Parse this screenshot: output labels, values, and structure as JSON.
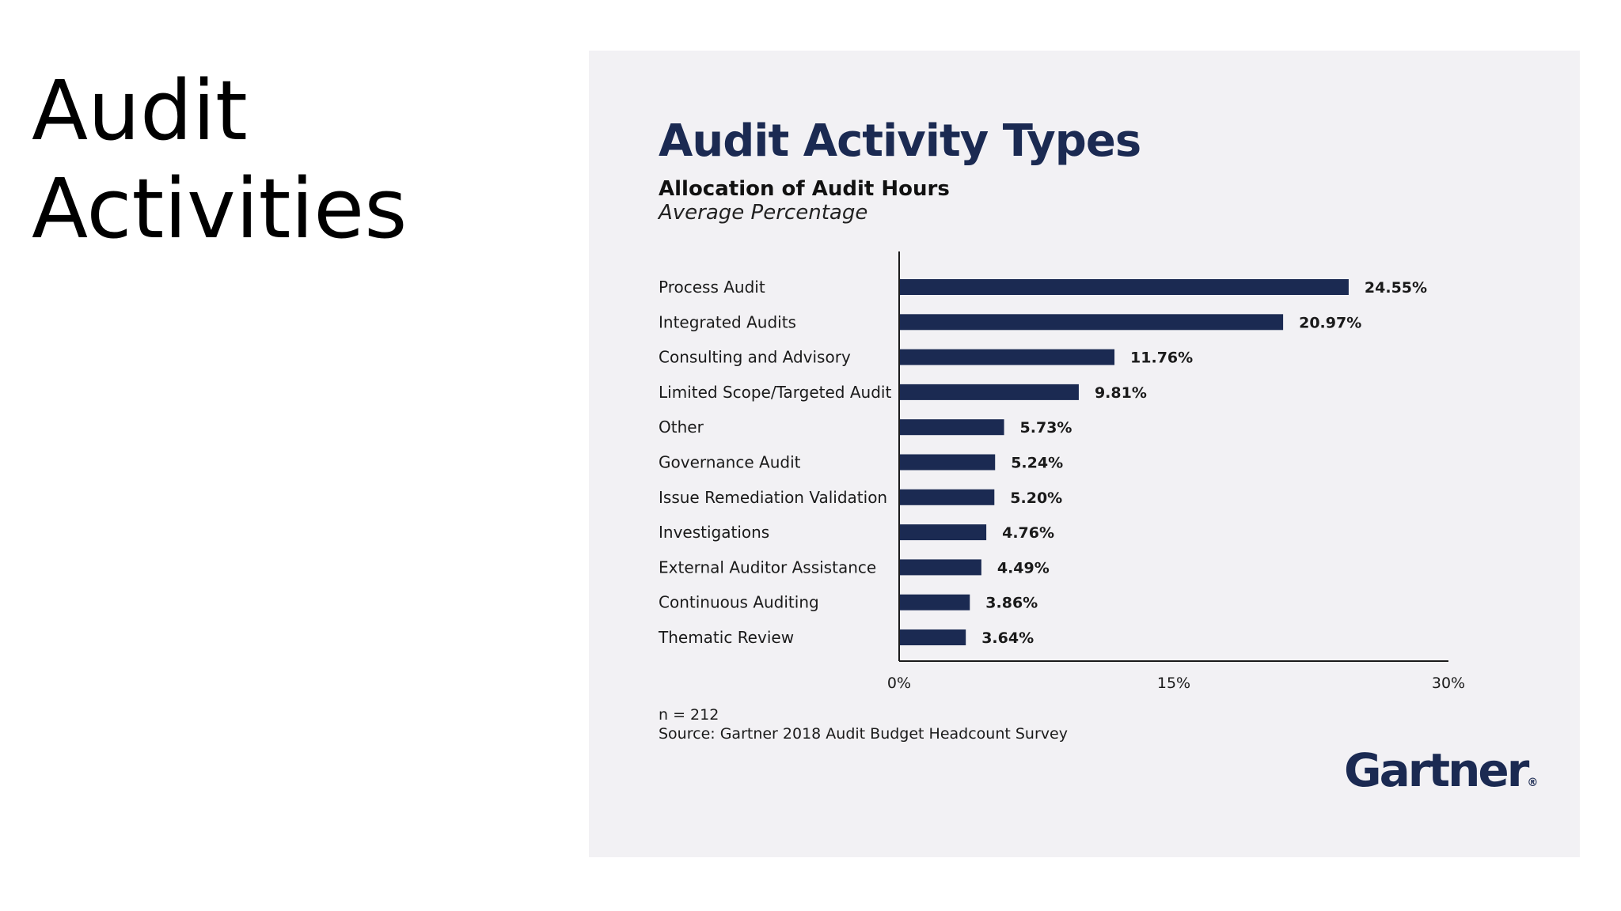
{
  "slide": {
    "title_line1": "Audit",
    "title_line2": "Activities"
  },
  "colors": {
    "bar": "#1b2a52",
    "panel_bg": "#f2f1f4",
    "axis": "#1a1a1a"
  },
  "chart_data": {
    "type": "bar",
    "orientation": "horizontal",
    "title": "Audit Activity Types",
    "subtitle": "Allocation of Audit Hours",
    "subtitle2": "Average Percentage",
    "categories": [
      "Process Audit",
      "Integrated Audits",
      "Consulting and Advisory",
      "Limited Scope/Targeted Audit",
      "Other",
      "Governance Audit",
      "Issue Remediation Validation",
      "Investigations",
      "External Auditor Assistance",
      "Continuous Auditing",
      "Thematic Review"
    ],
    "values": [
      24.55,
      20.97,
      11.76,
      9.81,
      5.73,
      5.24,
      5.2,
      4.76,
      4.49,
      3.86,
      3.64
    ],
    "value_labels": [
      "24.55%",
      "20.97%",
      "11.76%",
      "9.81%",
      "5.73%",
      "5.24%",
      "5.20%",
      "4.76%",
      "4.49%",
      "3.86%",
      "3.64%"
    ],
    "xlim": [
      0,
      30
    ],
    "xticks": [
      0,
      15,
      30
    ],
    "xtick_labels": [
      "0%",
      "15%",
      "30%"
    ],
    "grid": false,
    "legend": "none"
  },
  "footnote": {
    "n": "n = 212",
    "source": "Source: Gartner 2018 Audit Budget Headcount Survey"
  },
  "logo": {
    "text": "Gartner",
    "mark": "®"
  }
}
